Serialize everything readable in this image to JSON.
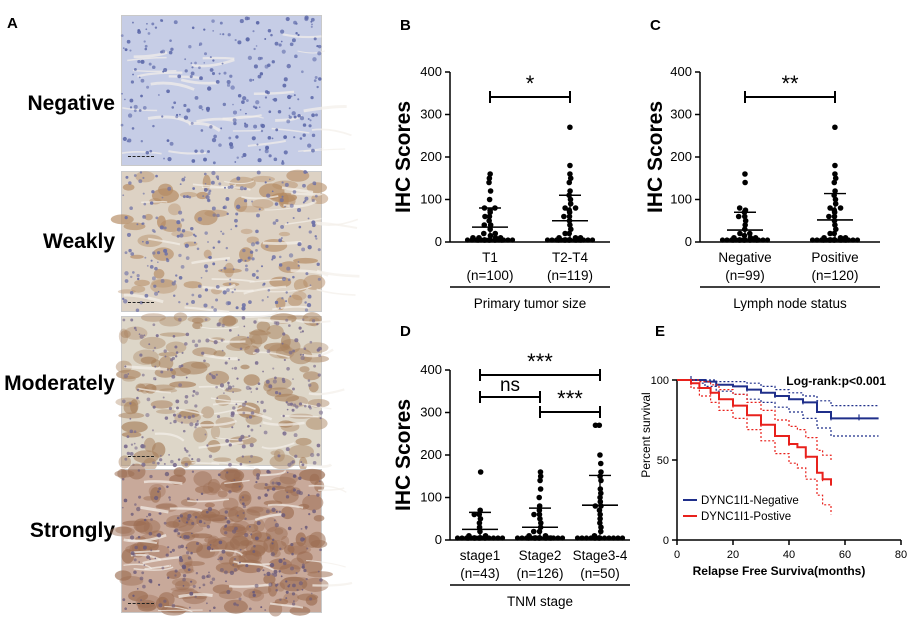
{
  "panels": {
    "A": {
      "letter": "A",
      "rows": [
        {
          "label": "Negative",
          "tint": "#c6cde6"
        },
        {
          "label": "Weakly",
          "tint": "#ddd2c4"
        },
        {
          "label": "Moderately",
          "tint": "#ddd6c8"
        },
        {
          "label": "Strongly",
          "tint": "#c8a99a"
        }
      ]
    },
    "B": {
      "letter": "B"
    },
    "C": {
      "letter": "C"
    },
    "D": {
      "letter": "D"
    },
    "E": {
      "letter": "E"
    }
  },
  "chart_data": [
    {
      "id": "B",
      "type": "scatter",
      "ylabel": "IHC Scores",
      "ylim": [
        0,
        400
      ],
      "yticks": [
        "0",
        "100",
        "200",
        "300",
        "400"
      ],
      "groups": [
        {
          "label": "T1",
          "n_label": "(n=100)",
          "mean": 35,
          "sd": 45,
          "points": [
            0,
            0,
            0,
            0,
            0,
            5,
            5,
            10,
            10,
            10,
            10,
            15,
            20,
            20,
            30,
            40,
            40,
            50,
            60,
            60,
            70,
            75,
            80,
            80,
            100,
            120,
            140,
            150,
            160
          ]
        },
        {
          "label": "T2-T4",
          "n_label": "(n=119)",
          "mean": 50,
          "sd": 60,
          "points": [
            0,
            0,
            0,
            0,
            0,
            5,
            5,
            10,
            10,
            10,
            20,
            20,
            30,
            40,
            50,
            60,
            60,
            70,
            75,
            80,
            80,
            90,
            100,
            110,
            120,
            140,
            150,
            160,
            180,
            270
          ]
        }
      ],
      "xlabel": "Primary tumor size",
      "significance": [
        {
          "from": 0,
          "to": 1,
          "text": "*"
        }
      ]
    },
    {
      "id": "C",
      "type": "scatter",
      "ylabel": "IHC Scores",
      "ylim": [
        0,
        400
      ],
      "yticks": [
        "0",
        "100",
        "200",
        "300",
        "400"
      ],
      "groups": [
        {
          "label": "Negative",
          "n_label": "(n=99)",
          "mean": 28,
          "sd": 42,
          "points": [
            0,
            0,
            0,
            0,
            0,
            5,
            5,
            10,
            10,
            10,
            15,
            20,
            20,
            30,
            40,
            50,
            60,
            60,
            70,
            75,
            80,
            140,
            160
          ]
        },
        {
          "label": "Positive",
          "n_label": "(n=120)",
          "mean": 52,
          "sd": 62,
          "points": [
            0,
            0,
            0,
            0,
            0,
            5,
            5,
            10,
            10,
            10,
            20,
            20,
            30,
            40,
            50,
            60,
            60,
            70,
            75,
            80,
            80,
            90,
            100,
            110,
            120,
            140,
            150,
            160,
            180,
            270
          ]
        }
      ],
      "xlabel": "Lymph node status",
      "significance": [
        {
          "from": 0,
          "to": 1,
          "text": "**"
        }
      ]
    },
    {
      "id": "D",
      "type": "scatter",
      "ylabel": "IHC Scores",
      "ylim": [
        0,
        400
      ],
      "yticks": [
        "0",
        "100",
        "200",
        "300",
        "400"
      ],
      "groups": [
        {
          "label": "stage1",
          "n_label": "(n=43)",
          "mean": 25,
          "sd": 40,
          "points": [
            0,
            0,
            0,
            0,
            5,
            5,
            10,
            10,
            20,
            30,
            40,
            50,
            60,
            60,
            70,
            160
          ]
        },
        {
          "label": "Stage2",
          "n_label": "(n=126)",
          "mean": 30,
          "sd": 45,
          "points": [
            0,
            0,
            0,
            0,
            0,
            5,
            5,
            10,
            10,
            20,
            20,
            30,
            40,
            50,
            60,
            60,
            70,
            80,
            100,
            120,
            140,
            150,
            160
          ]
        },
        {
          "label": "Stage3-4",
          "n_label": "(n=50)",
          "mean": 82,
          "sd": 70,
          "points": [
            0,
            0,
            5,
            10,
            20,
            30,
            40,
            50,
            60,
            70,
            80,
            80,
            90,
            100,
            110,
            120,
            140,
            150,
            160,
            180,
            200,
            270,
            270
          ]
        }
      ],
      "xlabel": "TNM stage",
      "significance": [
        {
          "from": 0,
          "to": 2,
          "text": "***",
          "level": 0
        },
        {
          "from": 0,
          "to": 1,
          "text": "ns",
          "level": 1
        },
        {
          "from": 1,
          "to": 2,
          "text": "***",
          "level": 2
        }
      ]
    },
    {
      "id": "E",
      "type": "line",
      "xlabel": "Relapse Free Surviva(months)",
      "ylabel": "Percent survival",
      "xlim": [
        0,
        80
      ],
      "ylim": [
        0,
        100
      ],
      "xticks": [
        "0",
        "20",
        "40",
        "60",
        "80"
      ],
      "yticks": [
        "0",
        "50",
        "100"
      ],
      "annotation": "Log-rank:p<0.001",
      "legend_position": "bottom-left",
      "series": [
        {
          "name": "DYNC1I1-Negative",
          "color": "#1f2f8a",
          "x": [
            0,
            5,
            10,
            14,
            20,
            25,
            30,
            35,
            40,
            45,
            50,
            55,
            60,
            65,
            72
          ],
          "y": [
            100,
            100,
            99,
            97,
            96,
            94,
            92,
            90,
            88,
            86,
            80,
            76,
            76,
            76,
            76
          ],
          "upper": [
            100,
            100,
            100,
            99,
            99,
            98,
            96,
            94,
            92,
            90,
            87,
            84,
            84,
            84,
            84
          ],
          "lower": [
            100,
            98,
            96,
            93,
            91,
            88,
            86,
            83,
            80,
            76,
            70,
            65,
            65,
            65,
            65
          ]
        },
        {
          "name": "DYNC1I1-Postive",
          "color": "#e8211c",
          "x": [
            0,
            5,
            8,
            12,
            15,
            20,
            25,
            30,
            35,
            40,
            43,
            46,
            50,
            52,
            55
          ],
          "y": [
            100,
            98,
            95,
            92,
            88,
            84,
            78,
            72,
            65,
            60,
            58,
            52,
            42,
            38,
            34
          ],
          "upper": [
            100,
            100,
            99,
            97,
            94,
            91,
            86,
            81,
            75,
            71,
            69,
            64,
            56,
            53,
            50
          ],
          "lower": [
            100,
            95,
            90,
            86,
            81,
            76,
            69,
            62,
            54,
            48,
            45,
            38,
            28,
            22,
            16
          ]
        }
      ]
    }
  ],
  "colors": {
    "axis": "#000000",
    "dot": "#000000"
  }
}
